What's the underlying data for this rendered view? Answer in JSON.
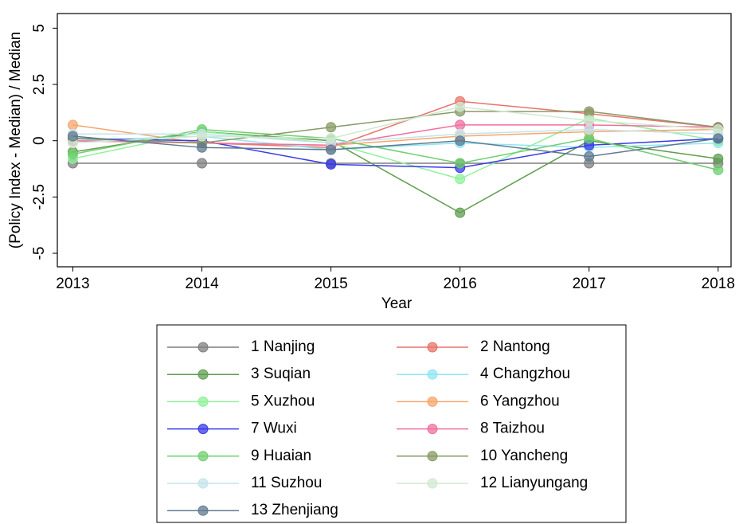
{
  "chart_data": {
    "type": "line",
    "x_label": "Year",
    "y_label": "(Policy Index - Median) / Median",
    "x": [
      2013,
      2014,
      2015,
      2016,
      2017,
      2018
    ],
    "xlim": [
      2012.88,
      2018.1
    ],
    "xticks": [
      2013,
      2014,
      2015,
      2016,
      2017,
      2018
    ],
    "ylim": [
      -5.6,
      5.65
    ],
    "yticks": [
      5,
      2.5,
      0,
      -2.5,
      -5
    ],
    "legend_position": "bottom",
    "series": [
      {
        "name": "1 Nanjing",
        "color": "#7f7f7f",
        "values": [
          -1,
          -1,
          -1,
          -1,
          -1,
          -1
        ]
      },
      {
        "name": "2 Nantong",
        "color": "#e8736b",
        "values": [
          0,
          -0.1,
          -0.3,
          1.75,
          1.2,
          0.6
        ]
      },
      {
        "name": "3 Suqian",
        "color": "#5e9e4f",
        "values": [
          -0.5,
          0.4,
          0,
          -3.2,
          0,
          -0.8
        ]
      },
      {
        "name": "4 Changzhou",
        "color": "#8fe6f2",
        "values": [
          0,
          0.2,
          -0.4,
          -0.1,
          -0.3,
          -0.1
        ]
      },
      {
        "name": "5 Xuzhou",
        "color": "#8ff29a",
        "values": [
          -0.8,
          0.4,
          -0.1,
          -1.7,
          1,
          0
        ]
      },
      {
        "name": "6 Yangzhou",
        "color": "#f5a66b",
        "values": [
          0.7,
          -0.1,
          -0.2,
          0.2,
          0.4,
          0.5
        ]
      },
      {
        "name": "7 Wuxi",
        "color": "#3a3ae8",
        "values": [
          0.1,
          0,
          -1.05,
          -1.2,
          -0.2,
          0.1
        ]
      },
      {
        "name": "8 Taizhou",
        "color": "#ef6f9f",
        "values": [
          0,
          -0.1,
          -0.2,
          0.7,
          0.7,
          0.6
        ]
      },
      {
        "name": "9 Huaian",
        "color": "#6fcf6f",
        "values": [
          -0.6,
          0.5,
          0.1,
          -1,
          0.1,
          -1.3
        ]
      },
      {
        "name": "10 Yancheng",
        "color": "#879a66",
        "values": [
          0.1,
          -0.1,
          0.6,
          1.3,
          1.3,
          0.6
        ]
      },
      {
        "name": "11 Suzhou",
        "color": "#c4e3ea",
        "values": [
          0.3,
          0.3,
          -0.1,
          0.3,
          0.5,
          0.3
        ]
      },
      {
        "name": "12 Lianyungang",
        "color": "#d2e8d2",
        "values": [
          -0.1,
          0.2,
          0.1,
          1.5,
          0.9,
          0.5
        ]
      },
      {
        "name": "13 Zhenjiang",
        "color": "#5f7a8f",
        "values": [
          0.2,
          -0.3,
          -0.4,
          0,
          -0.7,
          0.1
        ]
      }
    ]
  }
}
